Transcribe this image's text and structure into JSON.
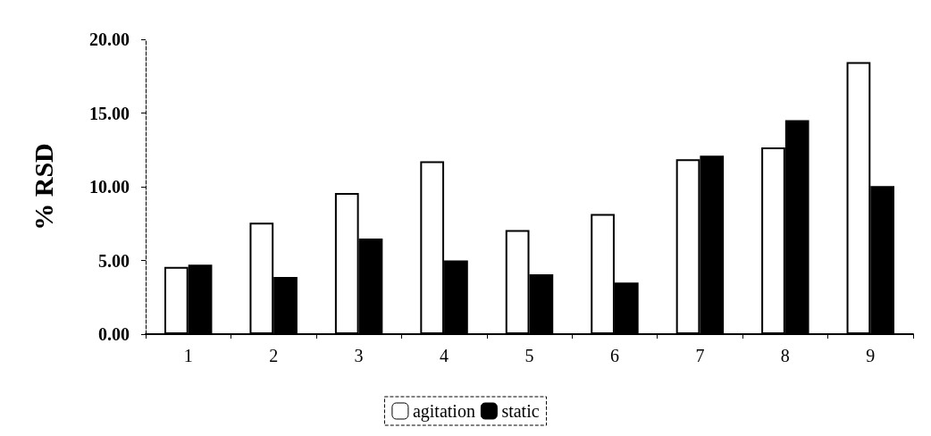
{
  "chart_data": {
    "type": "bar",
    "ylabel": "% RSD",
    "categories": [
      "1",
      "2",
      "3",
      "4",
      "5",
      "6",
      "7",
      "8",
      "9"
    ],
    "series": [
      {
        "name": "agitation",
        "color": "#ffffff",
        "values": [
          4.56,
          7.56,
          9.58,
          11.73,
          7.06,
          8.15,
          11.87,
          12.67,
          18.46
        ]
      },
      {
        "name": "static",
        "color": "#000000",
        "values": [
          4.71,
          3.88,
          6.48,
          5.0,
          4.06,
          3.5,
          12.1,
          14.52,
          10.04
        ]
      }
    ],
    "ylim": [
      0,
      20
    ],
    "yticks": [
      {
        "value": 0,
        "label": "0.00"
      },
      {
        "value": 5,
        "label": "5.00"
      },
      {
        "value": 10,
        "label": "10.00"
      },
      {
        "value": 15,
        "label": "15.00"
      },
      {
        "value": 20,
        "label": "20.00"
      }
    ],
    "grid": false,
    "legend": "bottom"
  }
}
